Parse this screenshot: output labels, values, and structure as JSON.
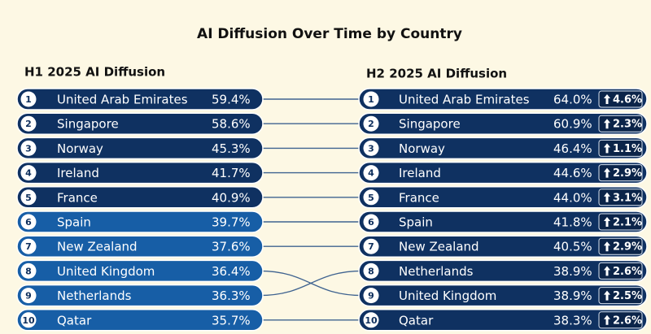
{
  "title": "AI Diffusion Over Time by Country",
  "h1": {
    "heading": "H1 2025 AI Diffusion",
    "rows": [
      {
        "rank": 1,
        "country": "United Arab Emirates",
        "value": "59.4%"
      },
      {
        "rank": 2,
        "country": "Singapore",
        "value": "58.6%"
      },
      {
        "rank": 3,
        "country": "Norway",
        "value": "45.3%"
      },
      {
        "rank": 4,
        "country": "Ireland",
        "value": "41.7%"
      },
      {
        "rank": 5,
        "country": "France",
        "value": "40.9%"
      },
      {
        "rank": 6,
        "country": "Spain",
        "value": "39.7%"
      },
      {
        "rank": 7,
        "country": "New Zealand",
        "value": "37.6%"
      },
      {
        "rank": 8,
        "country": "United Kingdom",
        "value": "36.4%"
      },
      {
        "rank": 9,
        "country": "Netherlands",
        "value": "36.3%"
      },
      {
        "rank": 10,
        "country": "Qatar",
        "value": "35.7%"
      }
    ]
  },
  "h2": {
    "heading": "H2 2025 AI Diffusion",
    "rows": [
      {
        "rank": 1,
        "country": "United Arab Emirates",
        "value": "64.0%",
        "change": "4.6%"
      },
      {
        "rank": 2,
        "country": "Singapore",
        "value": "60.9%",
        "change": "2.3%"
      },
      {
        "rank": 3,
        "country": "Norway",
        "value": "46.4%",
        "change": "1.1%"
      },
      {
        "rank": 4,
        "country": "Ireland",
        "value": "44.6%",
        "change": "2.9%"
      },
      {
        "rank": 5,
        "country": "France",
        "value": "44.0%",
        "change": "3.1%"
      },
      {
        "rank": 6,
        "country": "Spain",
        "value": "41.8%",
        "change": "2.1%"
      },
      {
        "rank": 7,
        "country": "New Zealand",
        "value": "40.5%",
        "change": "2.9%"
      },
      {
        "rank": 8,
        "country": "Netherlands",
        "value": "38.9%",
        "change": "2.6%"
      },
      {
        "rank": 9,
        "country": "United Kingdom",
        "value": "38.9%",
        "change": "2.5%"
      },
      {
        "rank": 10,
        "country": "Qatar",
        "value": "38.3%",
        "change": "2.6%"
      }
    ]
  }
}
